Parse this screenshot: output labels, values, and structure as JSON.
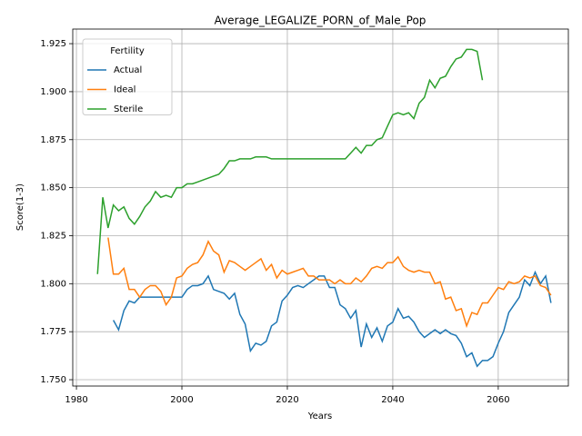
{
  "chart_data": {
    "type": "line",
    "title": "Average_LEGALIZE_PORN_of_Male_Pop",
    "xlabel": "Years",
    "ylabel": "Score(1-3)",
    "legend_title": "Fertility",
    "legend": "upper left",
    "grid": true,
    "xlim": [
      1979.3,
      2073.3
    ],
    "xticks": [
      1980,
      2000,
      2020,
      2040,
      2060
    ],
    "ylim": [
      1.7467,
      1.9326
    ],
    "yticks": [
      {
        "value": 1.75,
        "label": "1.750"
      },
      {
        "value": 1.775,
        "label": "1.775"
      },
      {
        "value": 1.8,
        "label": "1.800"
      },
      {
        "value": 1.825,
        "label": "1.825"
      },
      {
        "value": 1.85,
        "label": "1.850"
      },
      {
        "value": 1.875,
        "label": "1.875"
      },
      {
        "value": 1.9,
        "label": "1.900"
      },
      {
        "value": 1.925,
        "label": "1.925"
      }
    ],
    "x": [
      1984,
      1985,
      1986,
      1987,
      1988,
      1989,
      1990,
      1991,
      1992,
      1993,
      1994,
      1995,
      1996,
      1997,
      1998,
      1999,
      2000,
      2001,
      2002,
      2003,
      2004,
      2005,
      2006,
      2007,
      2008,
      2009,
      2010,
      2011,
      2012,
      2013,
      2014,
      2015,
      2016,
      2017,
      2018,
      2019,
      2020,
      2021,
      2022,
      2023,
      2024,
      2025,
      2026,
      2027,
      2028,
      2029,
      2030,
      2031,
      2032,
      2033,
      2034,
      2035,
      2036,
      2037,
      2038,
      2039,
      2040,
      2041,
      2042,
      2043,
      2044,
      2045,
      2046,
      2047,
      2048,
      2049,
      2050,
      2051,
      2052,
      2053,
      2054,
      2055,
      2056,
      2057,
      2058,
      2059,
      2060,
      2061,
      2062,
      2063,
      2064,
      2065,
      2066,
      2067,
      2068,
      2069,
      2070
    ],
    "series": [
      {
        "name": "Actual",
        "color": "#1f77b4",
        "values": [
          null,
          null,
          null,
          1.781,
          1.776,
          1.786,
          1.791,
          1.79,
          1.793,
          1.793,
          1.793,
          1.793,
          1.793,
          1.793,
          1.793,
          1.793,
          1.793,
          1.797,
          1.799,
          1.799,
          1.8,
          1.804,
          1.797,
          1.796,
          1.795,
          1.792,
          1.795,
          1.784,
          1.779,
          1.765,
          1.769,
          1.768,
          1.77,
          1.778,
          1.78,
          1.791,
          1.794,
          1.798,
          1.799,
          1.798,
          1.8,
          1.802,
          1.804,
          1.804,
          1.798,
          1.798,
          1.789,
          1.787,
          1.782,
          1.786,
          1.767,
          1.779,
          1.772,
          1.777,
          1.77,
          1.778,
          1.78,
          1.787,
          1.782,
          1.783,
          1.78,
          1.775,
          1.772,
          1.774,
          1.776,
          1.774,
          1.776,
          1.774,
          1.773,
          1.769,
          1.762,
          1.764,
          1.757,
          1.76,
          1.76,
          1.762,
          1.769,
          1.775,
          1.785,
          1.789,
          1.793,
          1.802,
          1.799,
          1.806,
          1.8,
          1.804,
          1.79
        ]
      },
      {
        "name": "Ideal",
        "color": "#ff7f0e",
        "values": [
          null,
          null,
          1.824,
          1.805,
          1.805,
          1.808,
          1.797,
          1.797,
          1.793,
          1.797,
          1.799,
          1.799,
          1.796,
          1.789,
          1.793,
          1.803,
          1.804,
          1.808,
          1.81,
          1.811,
          1.815,
          1.822,
          1.817,
          1.815,
          1.806,
          1.812,
          1.811,
          1.809,
          1.807,
          1.809,
          1.811,
          1.813,
          1.807,
          1.81,
          1.803,
          1.807,
          1.805,
          1.806,
          1.807,
          1.808,
          1.804,
          1.804,
          1.802,
          1.802,
          1.802,
          1.8,
          1.802,
          1.8,
          1.8,
          1.803,
          1.801,
          1.804,
          1.808,
          1.809,
          1.808,
          1.811,
          1.811,
          1.814,
          1.809,
          1.807,
          1.806,
          1.807,
          1.806,
          1.806,
          1.8,
          1.801,
          1.792,
          1.793,
          1.786,
          1.787,
          1.778,
          1.785,
          1.784,
          1.79,
          1.79,
          1.794,
          1.798,
          1.797,
          1.801,
          1.8,
          1.801,
          1.804,
          1.803,
          1.804,
          1.799,
          1.798,
          1.794
        ]
      },
      {
        "name": "Sterile",
        "color": "#2ca02c",
        "values": [
          1.805,
          1.845,
          1.829,
          1.841,
          1.838,
          1.84,
          1.834,
          1.831,
          1.835,
          1.84,
          1.843,
          1.848,
          1.845,
          1.846,
          1.845,
          1.85,
          1.85,
          1.852,
          1.852,
          1.853,
          1.854,
          1.855,
          1.856,
          1.857,
          1.86,
          1.864,
          1.864,
          1.865,
          1.865,
          1.865,
          1.866,
          1.866,
          1.866,
          1.865,
          1.865,
          1.865,
          1.865,
          1.865,
          1.865,
          1.865,
          1.865,
          1.865,
          1.865,
          1.865,
          1.865,
          1.865,
          1.865,
          1.865,
          1.868,
          1.871,
          1.868,
          1.872,
          1.872,
          1.875,
          1.876,
          1.882,
          1.888,
          1.889,
          1.888,
          1.889,
          1.886,
          1.894,
          1.897,
          1.906,
          1.902,
          1.907,
          1.908,
          1.913,
          1.917,
          1.918,
          1.922,
          1.922,
          1.921,
          1.906,
          null,
          null,
          null,
          null,
          null,
          null,
          null,
          null,
          null,
          null,
          null,
          null,
          null
        ]
      }
    ]
  }
}
